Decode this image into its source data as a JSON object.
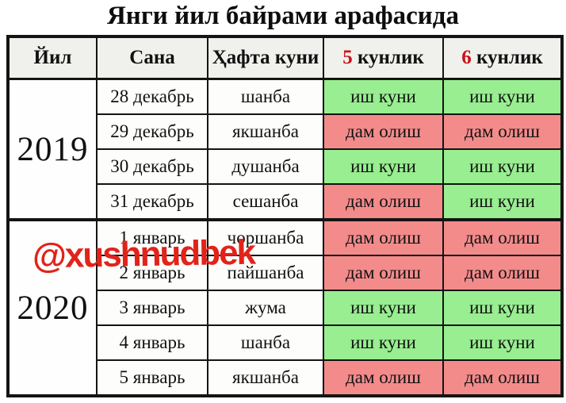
{
  "title": "Янги йил байрами арафасида",
  "watermark": "@xushnudbek",
  "colors": {
    "work": "#98ee90",
    "rest": "#f38b8b",
    "header_bg": "#f0f0ed",
    "accent_red": "#cc1116",
    "watermark_red": "#e2231a"
  },
  "table": {
    "columns": [
      {
        "label": "Йил"
      },
      {
        "label": "Сана"
      },
      {
        "label": "Ҳафта куни"
      },
      {
        "num": "5",
        "label": "кунлик"
      },
      {
        "num": "6",
        "label": "кунлик"
      }
    ],
    "groups": [
      {
        "year": "2019",
        "rows": [
          {
            "date": "28 декабрь",
            "day": "шанба",
            "five": "иш куни",
            "five_type": "work",
            "six": "иш куни",
            "six_type": "work"
          },
          {
            "date": "29 декабрь",
            "day": "якшанба",
            "five": "дам олиш",
            "five_type": "rest",
            "six": "дам олиш",
            "six_type": "rest"
          },
          {
            "date": "30 декабрь",
            "day": "душанба",
            "five": "иш куни",
            "five_type": "work",
            "six": "иш куни",
            "six_type": "work"
          },
          {
            "date": "31 декабрь",
            "day": "сешанба",
            "five": "дам олиш",
            "five_type": "rest",
            "six": "иш куни",
            "six_type": "work"
          }
        ]
      },
      {
        "year": "2020",
        "rows": [
          {
            "date": "1 январь",
            "day": "чоршанба",
            "five": "дам олиш",
            "five_type": "rest",
            "six": "дам олиш",
            "six_type": "rest"
          },
          {
            "date": "2 январь",
            "day": "пайшанба",
            "five": "дам олиш",
            "five_type": "rest",
            "six": "дам олиш",
            "six_type": "rest"
          },
          {
            "date": "3 январь",
            "day": "жума",
            "five": "иш куни",
            "five_type": "work",
            "six": "иш куни",
            "six_type": "work"
          },
          {
            "date": "4 январь",
            "day": "шанба",
            "five": "иш куни",
            "five_type": "work",
            "six": "иш куни",
            "six_type": "work"
          },
          {
            "date": "5 январь",
            "day": "якшанба",
            "five": "дам олиш",
            "five_type": "rest",
            "six": "дам олиш",
            "six_type": "rest"
          }
        ]
      }
    ]
  }
}
